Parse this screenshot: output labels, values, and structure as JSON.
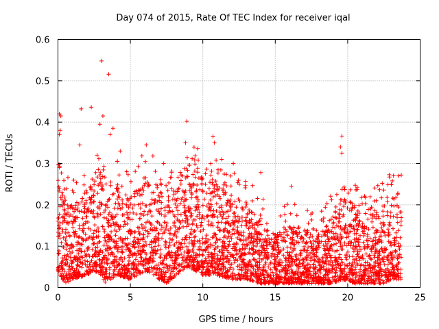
{
  "chart_data": {
    "type": "scatter",
    "title": "Day 074 of 2015, Rate Of TEC Index for receiver iqal",
    "xlabel": "GPS time / hours",
    "ylabel": "ROTI / TECUs",
    "xlim": [
      0,
      25
    ],
    "ylim": [
      0,
      0.6
    ],
    "xticks": [
      0,
      5,
      10,
      15,
      20,
      25
    ],
    "yticks": [
      0,
      0.1,
      0.2,
      0.3,
      0.4,
      0.5,
      0.6
    ],
    "xtick_labels": [
      "0",
      "5",
      "10",
      "15",
      "20",
      "25"
    ],
    "ytick_labels": [
      "0",
      "0.1",
      "0.2",
      "0.3",
      "0.4",
      "0.5",
      "0.6"
    ],
    "grid": true,
    "marker": "+",
    "color": "#ff0000",
    "series": [
      {
        "name": "ROTI",
        "density_profile": [
          {
            "x": 0.0,
            "low": 0.04,
            "high": 0.25
          },
          {
            "x": 0.5,
            "low": 0.01,
            "high": 0.22
          },
          {
            "x": 1.0,
            "low": 0.02,
            "high": 0.2
          },
          {
            "x": 2.0,
            "low": 0.03,
            "high": 0.24
          },
          {
            "x": 2.5,
            "low": 0.04,
            "high": 0.28
          },
          {
            "x": 3.0,
            "low": 0.03,
            "high": 0.29
          },
          {
            "x": 3.3,
            "low": 0.01,
            "high": 0.2
          },
          {
            "x": 4.0,
            "low": 0.03,
            "high": 0.26
          },
          {
            "x": 5.0,
            "low": 0.02,
            "high": 0.22
          },
          {
            "x": 6.0,
            "low": 0.04,
            "high": 0.27
          },
          {
            "x": 7.0,
            "low": 0.02,
            "high": 0.25
          },
          {
            "x": 7.5,
            "low": 0.01,
            "high": 0.2
          },
          {
            "x": 8.5,
            "low": 0.04,
            "high": 0.28
          },
          {
            "x": 9.0,
            "low": 0.05,
            "high": 0.3
          },
          {
            "x": 10.0,
            "low": 0.03,
            "high": 0.27
          },
          {
            "x": 11.0,
            "low": 0.03,
            "high": 0.25
          },
          {
            "x": 12.0,
            "low": 0.02,
            "high": 0.22
          },
          {
            "x": 13.0,
            "low": 0.02,
            "high": 0.21
          },
          {
            "x": 14.0,
            "low": 0.01,
            "high": 0.16
          },
          {
            "x": 15.0,
            "low": 0.01,
            "high": 0.13
          },
          {
            "x": 16.0,
            "low": 0.01,
            "high": 0.15
          },
          {
            "x": 17.0,
            "low": 0.01,
            "high": 0.14
          },
          {
            "x": 18.0,
            "low": 0.01,
            "high": 0.14
          },
          {
            "x": 19.0,
            "low": 0.01,
            "high": 0.18
          },
          {
            "x": 19.6,
            "low": 0.02,
            "high": 0.22
          },
          {
            "x": 20.5,
            "low": 0.01,
            "high": 0.2
          },
          {
            "x": 21.5,
            "low": 0.01,
            "high": 0.18
          },
          {
            "x": 22.5,
            "low": 0.01,
            "high": 0.2
          },
          {
            "x": 23.0,
            "low": 0.02,
            "high": 0.22
          },
          {
            "x": 23.7,
            "low": 0.02,
            "high": 0.2
          }
        ],
        "outliers": [
          {
            "x": 0.1,
            "y": 0.42
          },
          {
            "x": 0.2,
            "y": 0.415
          },
          {
            "x": 0.15,
            "y": 0.38
          },
          {
            "x": 0.1,
            "y": 0.37
          },
          {
            "x": 1.6,
            "y": 0.432
          },
          {
            "x": 2.3,
            "y": 0.436
          },
          {
            "x": 3.0,
            "y": 0.548
          },
          {
            "x": 3.5,
            "y": 0.516
          },
          {
            "x": 3.1,
            "y": 0.415
          },
          {
            "x": 2.9,
            "y": 0.395
          },
          {
            "x": 3.8,
            "y": 0.385
          },
          {
            "x": 3.6,
            "y": 0.37
          },
          {
            "x": 1.5,
            "y": 0.345
          },
          {
            "x": 6.1,
            "y": 0.345
          },
          {
            "x": 8.9,
            "y": 0.402
          },
          {
            "x": 8.8,
            "y": 0.35
          },
          {
            "x": 10.7,
            "y": 0.365
          },
          {
            "x": 10.8,
            "y": 0.35
          },
          {
            "x": 19.6,
            "y": 0.366
          },
          {
            "x": 19.5,
            "y": 0.34
          },
          {
            "x": 19.6,
            "y": 0.325
          },
          {
            "x": 23.7,
            "y": 0.272
          },
          {
            "x": 23.5,
            "y": 0.27
          },
          {
            "x": 16.1,
            "y": 0.245
          },
          {
            "x": 14.0,
            "y": 0.278
          },
          {
            "x": 12.1,
            "y": 0.3
          },
          {
            "x": 11.3,
            "y": 0.31
          },
          {
            "x": 4.3,
            "y": 0.33
          },
          {
            "x": 2.7,
            "y": 0.32
          },
          {
            "x": 7.3,
            "y": 0.3
          }
        ]
      }
    ]
  }
}
